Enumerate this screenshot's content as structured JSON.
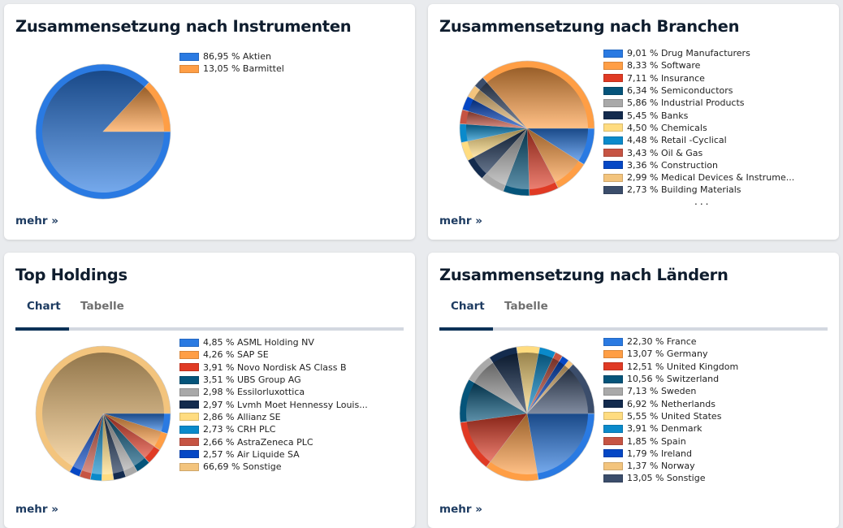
{
  "cards": {
    "instrumente": {
      "title": "Zusammensetzung nach Instrumenten",
      "more_label": "mehr »"
    },
    "branchen": {
      "title": "Zusammensetzung nach Branchen",
      "more_label": "mehr »",
      "legend_ellipsis": "..."
    },
    "holdings": {
      "title": "Top Holdings",
      "tabs": [
        {
          "label": "Chart",
          "active": true
        },
        {
          "label": "Tabelle",
          "active": false
        }
      ],
      "more_label": "mehr »"
    },
    "laender": {
      "title": "Zusammensetzung nach Ländern",
      "tabs": [
        {
          "label": "Chart",
          "active": true
        },
        {
          "label": "Tabelle",
          "active": false
        }
      ],
      "more_label": "mehr »"
    }
  },
  "chart_data": [
    {
      "id": "instrumente",
      "type": "pie",
      "title": "Zusammensetzung nach Instrumenten",
      "legend_position": "right",
      "slices": [
        {
          "label": "Aktien",
          "value": 86.95,
          "display": "86,95 %",
          "color": "#2a7ae2"
        },
        {
          "label": "Barmittel",
          "value": 13.05,
          "display": "13,05 %",
          "color": "#ff9e45"
        }
      ]
    },
    {
      "id": "branchen",
      "type": "pie",
      "title": "Zusammensetzung nach Branchen",
      "legend_position": "right",
      "legend_truncated": true,
      "slices": [
        {
          "label": "Drug Manufacturers",
          "value": 9.01,
          "display": "9,01 %",
          "color": "#2a7ae2"
        },
        {
          "label": "Software",
          "value": 8.33,
          "display": "8,33 %",
          "color": "#ff9e45"
        },
        {
          "label": "Insurance",
          "value": 7.11,
          "display": "7,11 %",
          "color": "#e03a24"
        },
        {
          "label": "Semiconductors",
          "value": 6.34,
          "display": "6,34 %",
          "color": "#05547a"
        },
        {
          "label": "Industrial Products",
          "value": 5.86,
          "display": "5,86 %",
          "color": "#a9a9a9"
        },
        {
          "label": "Banks",
          "value": 5.45,
          "display": "5,45 %",
          "color": "#132b4e"
        },
        {
          "label": "Chemicals",
          "value": 4.5,
          "display": "4,50 %",
          "color": "#ffdc80"
        },
        {
          "label": "Retail -Cyclical",
          "value": 4.48,
          "display": "4,48 %",
          "color": "#0a8acb"
        },
        {
          "label": "Oil & Gas",
          "value": 3.43,
          "display": "3,43 %",
          "color": "#c65443"
        },
        {
          "label": "Construction",
          "value": 3.36,
          "display": "3,36 %",
          "color": "#0547c5"
        },
        {
          "label": "Medical Devices & Instrume...",
          "value": 2.99,
          "display": "2,99 %",
          "color": "#f3c47d"
        },
        {
          "label": "Building Materials",
          "value": 2.73,
          "display": "2,73 %",
          "color": "#3b4d6b"
        }
      ]
    },
    {
      "id": "holdings",
      "type": "pie",
      "title": "Top Holdings",
      "legend_position": "right",
      "slices": [
        {
          "label": "ASML Holding NV",
          "value": 4.85,
          "display": "4,85 %",
          "color": "#2a7ae2"
        },
        {
          "label": "SAP SE",
          "value": 4.26,
          "display": "4,26 %",
          "color": "#ff9e45"
        },
        {
          "label": "Novo Nordisk AS Class B",
          "value": 3.91,
          "display": "3,91 %",
          "color": "#e03a24"
        },
        {
          "label": "UBS Group AG",
          "value": 3.51,
          "display": "3,51 %",
          "color": "#05547a"
        },
        {
          "label": "Essilorluxottica",
          "value": 2.98,
          "display": "2,98 %",
          "color": "#a9a9a9"
        },
        {
          "label": "Lvmh Moet Hennessy Louis...",
          "value": 2.97,
          "display": "2,97 %",
          "color": "#132b4e"
        },
        {
          "label": "Allianz SE",
          "value": 2.86,
          "display": "2,86 %",
          "color": "#ffdc80"
        },
        {
          "label": "CRH PLC",
          "value": 2.73,
          "display": "2,73 %",
          "color": "#0a8acb"
        },
        {
          "label": "AstraZeneca PLC",
          "value": 2.66,
          "display": "2,66 %",
          "color": "#c65443"
        },
        {
          "label": "Air Liquide SA",
          "value": 2.57,
          "display": "2,57 %",
          "color": "#0547c5"
        },
        {
          "label": "Sonstige",
          "value": 66.69,
          "display": "66,69 %",
          "color": "#f3c47d"
        }
      ]
    },
    {
      "id": "laender",
      "type": "pie",
      "title": "Zusammensetzung nach Ländern",
      "legend_position": "right",
      "slices": [
        {
          "label": "France",
          "value": 22.3,
          "display": "22,30 %",
          "color": "#2a7ae2"
        },
        {
          "label": "Germany",
          "value": 13.07,
          "display": "13,07 %",
          "color": "#ff9e45"
        },
        {
          "label": "United Kingdom",
          "value": 12.51,
          "display": "12,51 %",
          "color": "#e03a24"
        },
        {
          "label": "Switzerland",
          "value": 10.56,
          "display": "10,56 %",
          "color": "#05547a"
        },
        {
          "label": "Sweden",
          "value": 7.13,
          "display": "7,13 %",
          "color": "#a9a9a9"
        },
        {
          "label": "Netherlands",
          "value": 6.92,
          "display": "6,92 %",
          "color": "#132b4e"
        },
        {
          "label": "United States",
          "value": 5.55,
          "display": "5,55 %",
          "color": "#ffdc80"
        },
        {
          "label": "Denmark",
          "value": 3.91,
          "display": "3,91 %",
          "color": "#0a8acb"
        },
        {
          "label": "Spain",
          "value": 1.85,
          "display": "1,85 %",
          "color": "#c65443"
        },
        {
          "label": "Ireland",
          "value": 1.79,
          "display": "1,79 %",
          "color": "#0547c5"
        },
        {
          "label": "Norway",
          "value": 1.37,
          "display": "1,37 %",
          "color": "#f3c47d"
        },
        {
          "label": "Sonstige",
          "value": 13.05,
          "display": "13,05 %",
          "color": "#3b4d6b"
        }
      ]
    }
  ]
}
